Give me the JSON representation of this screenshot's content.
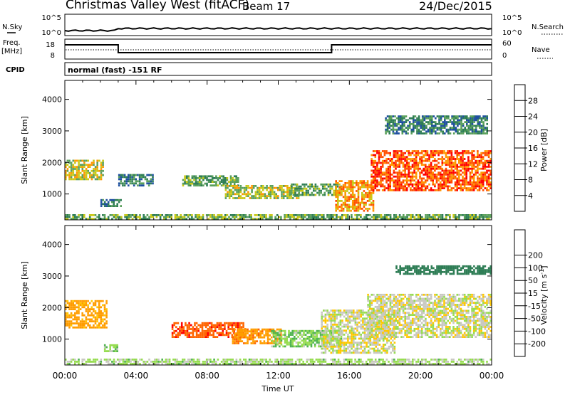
{
  "header": {
    "station": "Christmas Valley West (fitACF)",
    "beam": "Beam 17",
    "date": "24/Dec/2015"
  },
  "status_panels": {
    "nsky_label": "N.Sky",
    "nsky_ticks": [
      "10^5",
      "10^0"
    ],
    "nsearch_label": "N.Search",
    "nsearch_ticks": [
      "10^5",
      "10^0"
    ],
    "freq_label": "Freq.",
    "freq_unit": "[MHz]",
    "freq_ticks": [
      "18",
      "8"
    ],
    "nave_label": "Nave",
    "nave_ticks": [
      "60",
      "0"
    ],
    "cpid_label": "CPID",
    "cpid_value": "normal (fast) -151 RF"
  },
  "colors": {
    "power": [
      "#1414ff",
      "#1e4fa0",
      "#2e7d55",
      "#5aa05a",
      "#c8c814",
      "#ff9600",
      "#ff5000",
      "#ff0000"
    ],
    "velocity": [
      "#ff0000",
      "#ff6400",
      "#ff9d00",
      "#ffc800",
      "#c8c8c0",
      "#96dc50",
      "#50b450",
      "#2e7d55",
      "#1e4fa0",
      "#1414ff"
    ]
  },
  "chart_data": [
    {
      "type": "heatmap",
      "panel": "power",
      "xlabel": "",
      "ylabel": "Slant Range [km]",
      "x_range_hours": [
        0,
        24
      ],
      "ylim": [
        180,
        4600
      ],
      "yticks": [
        1000,
        2000,
        3000,
        4000
      ],
      "ytick_labels": [
        "1000",
        "2000",
        "3000",
        "4000"
      ],
      "colorbar_label": "Power [dB]",
      "colorbar_ticks": [
        "4",
        "8",
        "12",
        "16",
        "20",
        "24",
        "28"
      ],
      "colorbar_range": [
        0,
        30
      ],
      "regions": [
        {
          "t0": 0.0,
          "t1": 2.2,
          "r0": 1500,
          "r1": 2150,
          "value": 18
        },
        {
          "t0": 2.0,
          "t1": 3.2,
          "r0": 650,
          "r1": 900,
          "value": 10
        },
        {
          "t0": 3.0,
          "t1": 5.0,
          "r0": 1300,
          "r1": 1700,
          "value": 9
        },
        {
          "t0": 6.6,
          "t1": 9.8,
          "r0": 1300,
          "r1": 1650,
          "value": 13
        },
        {
          "t0": 9.0,
          "t1": 13.2,
          "r0": 900,
          "r1": 1350,
          "value": 17
        },
        {
          "t0": 12.6,
          "t1": 15.6,
          "r0": 1000,
          "r1": 1400,
          "value": 13
        },
        {
          "t0": 15.2,
          "t1": 17.4,
          "r0": 500,
          "r1": 1500,
          "value": 22
        },
        {
          "t0": 17.2,
          "t1": 24.0,
          "r0": 1150,
          "r1": 2450,
          "value": 26
        },
        {
          "t0": 18.0,
          "t1": 23.8,
          "r0": 2950,
          "r1": 3550,
          "value": 10
        },
        {
          "t0": 0.0,
          "t1": 24.0,
          "r0": 180,
          "r1": 420,
          "value": 14
        }
      ]
    },
    {
      "type": "heatmap",
      "panel": "velocity",
      "xlabel": "Time UT",
      "ylabel": "Slant Range [km]",
      "x_range_hours": [
        0,
        24
      ],
      "xticks": [
        "00:00",
        "04:00",
        "08:00",
        "12:00",
        "16:00",
        "20:00",
        "00:00"
      ],
      "ylim": [
        180,
        4600
      ],
      "yticks": [
        1000,
        2000,
        3000,
        4000
      ],
      "ytick_labels": [
        "1000",
        "2000",
        "3000",
        "4000"
      ],
      "colorbar_label": "Velocity [m s^-1]",
      "colorbar_ticks": [
        "-200",
        "-100",
        "-50",
        "-15",
        "15",
        "50",
        "100",
        "200"
      ],
      "regions": [
        {
          "t0": 0.0,
          "t1": 2.4,
          "r0": 1400,
          "r1": 2300,
          "value": -70
        },
        {
          "t0": 2.2,
          "t1": 3.0,
          "r0": 650,
          "r1": 900,
          "value": 40
        },
        {
          "t0": 6.0,
          "t1": 10.2,
          "r0": 1100,
          "r1": 1600,
          "value": -180
        },
        {
          "t0": 9.4,
          "t1": 12.2,
          "r0": 900,
          "r1": 1400,
          "value": -80
        },
        {
          "t0": 11.6,
          "t1": 15.6,
          "r0": 800,
          "r1": 1350,
          "value": 40
        },
        {
          "t0": 14.4,
          "t1": 18.6,
          "r0": 600,
          "r1": 2000,
          "value": 0
        },
        {
          "t0": 17.0,
          "t1": 24.0,
          "r0": 1100,
          "r1": 2500,
          "value": 0
        },
        {
          "t0": 18.6,
          "t1": 24.0,
          "r0": 3100,
          "r1": 3400,
          "value": 150
        },
        {
          "t0": 0.0,
          "t1": 24.0,
          "r0": 180,
          "r1": 450,
          "value": 25
        }
      ]
    }
  ]
}
